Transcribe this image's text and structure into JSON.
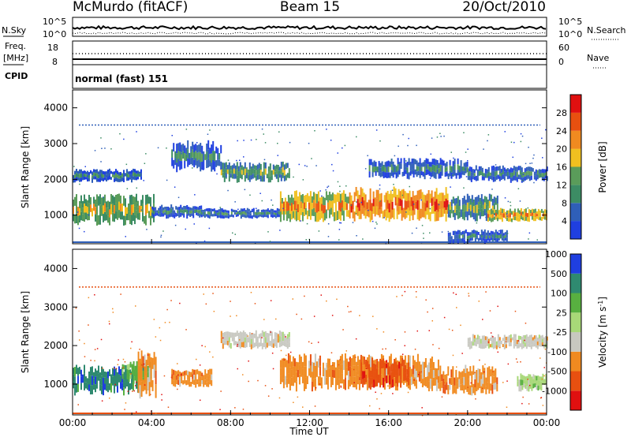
{
  "header": {
    "station": "McMurdo (fitACF)",
    "beam": "Beam 15",
    "date": "20/Oct/2010"
  },
  "top_panel": {
    "left_label": "N.Sky",
    "right_label": "N.Search",
    "left_ticks": [
      "10^5",
      "10^0"
    ],
    "right_ticks": [
      "10^5",
      "10^0"
    ]
  },
  "freq_panel": {
    "left_label_1": "Freq.",
    "left_label_2": "[MHz]",
    "left_ticks": [
      "18",
      "8"
    ],
    "right_ticks": [
      "60",
      "0"
    ],
    "right_label": "Nave",
    "cpid_label": "CPID"
  },
  "mode_label": "normal (fast) 151",
  "colors": {
    "power": [
      "#1f3fe0",
      "#2f5fb8",
      "#3c8c64",
      "#5a9c5a",
      "#f0c020",
      "#f08a20",
      "#e85010",
      "#e01010"
    ],
    "velocity": [
      "#e01010",
      "#e85010",
      "#f08a20",
      "#c8c8c0",
      "#a8d878",
      "#58b040",
      "#2f8a70",
      "#1f3fe0"
    ]
  },
  "chart_data": [
    {
      "type": "heatmap",
      "title": "Power",
      "xlabel": "Time UT",
      "ylabel": "Slant Range [km]",
      "x_tick_labels": [
        "00:00",
        "04:00",
        "08:00",
        "12:00",
        "16:00",
        "20:00",
        "00:00"
      ],
      "xlim_hours": [
        0,
        24
      ],
      "y_ticks": [
        1000,
        2000,
        3000,
        4000
      ],
      "ylim": [
        200,
        4500
      ],
      "colorbar": {
        "label": "Power [dB]",
        "ticks": [
          "4",
          "8",
          "12",
          "16",
          "20",
          "24",
          "28"
        ],
        "range": [
          0,
          32
        ]
      },
      "regions": [
        {
          "t0": 0.0,
          "t1": 4.1,
          "r0": 700,
          "r1": 1600,
          "level": 16
        },
        {
          "t0": 0.0,
          "t1": 3.5,
          "r0": 1900,
          "r1": 2300,
          "level": 8
        },
        {
          "t0": 4.0,
          "t1": 6.5,
          "r0": 900,
          "r1": 1300,
          "level": 8
        },
        {
          "t0": 5.0,
          "t1": 7.5,
          "r0": 2200,
          "r1": 3100,
          "level": 6
        },
        {
          "t0": 7.5,
          "t1": 11.0,
          "r0": 1900,
          "r1": 2500,
          "level": 10
        },
        {
          "t0": 6.5,
          "t1": 10.5,
          "r0": 900,
          "r1": 1200,
          "level": 8
        },
        {
          "t0": 10.5,
          "t1": 14.0,
          "r0": 800,
          "r1": 1700,
          "level": 20
        },
        {
          "t0": 14.0,
          "t1": 19.0,
          "r0": 800,
          "r1": 1800,
          "level": 22
        },
        {
          "t0": 19.0,
          "t1": 21.5,
          "r0": 800,
          "r1": 1600,
          "level": 12
        },
        {
          "t0": 21.0,
          "t1": 24.0,
          "r0": 800,
          "r1": 1200,
          "level": 18
        },
        {
          "t0": 20.0,
          "t1": 24.0,
          "r0": 1900,
          "r1": 2400,
          "level": 8
        },
        {
          "t0": 15.0,
          "t1": 20.0,
          "r0": 2000,
          "r1": 2600,
          "level": 6
        },
        {
          "t0": 19.0,
          "t1": 22.0,
          "r0": 200,
          "r1": 600,
          "level": 8
        }
      ]
    },
    {
      "type": "heatmap",
      "title": "Velocity",
      "xlabel": "Time UT",
      "ylabel": "Slant Range [km]",
      "x_tick_labels": [
        "00:00",
        "04:00",
        "08:00",
        "12:00",
        "16:00",
        "20:00",
        "00:00"
      ],
      "xlim_hours": [
        0,
        24
      ],
      "y_ticks": [
        1000,
        2000,
        3000,
        4000
      ],
      "ylim": [
        200,
        4500
      ],
      "colorbar": {
        "label": "Velocity [m s^-1]",
        "ticks": [
          "-1000",
          "-500",
          "-100",
          "-25",
          "25",
          "100",
          "500",
          "1000"
        ]
      },
      "regions": [
        {
          "t0": 0.0,
          "t1": 3.3,
          "r0": 700,
          "r1": 1500,
          "level": 6
        },
        {
          "t0": 2.5,
          "t1": 4.0,
          "r0": 1000,
          "r1": 1600,
          "level": 5
        },
        {
          "t0": 3.3,
          "t1": 4.2,
          "r0": 600,
          "r1": 1900,
          "level": 2
        },
        {
          "t0": 5.0,
          "t1": 7.0,
          "r0": 900,
          "r1": 1400,
          "level": 2
        },
        {
          "t0": 7.5,
          "t1": 11.0,
          "r0": 1900,
          "r1": 2400,
          "level": 3
        },
        {
          "t0": 10.5,
          "t1": 18.5,
          "r0": 800,
          "r1": 1800,
          "level": 2
        },
        {
          "t0": 14.5,
          "t1": 17.0,
          "r0": 900,
          "r1": 1700,
          "level": 1
        },
        {
          "t0": 18.5,
          "t1": 21.5,
          "r0": 700,
          "r1": 1500,
          "level": 2
        },
        {
          "t0": 20.0,
          "t1": 24.0,
          "r0": 1900,
          "r1": 2300,
          "level": 3
        },
        {
          "t0": 22.5,
          "t1": 24.0,
          "r0": 800,
          "r1": 1300,
          "level": 4
        }
      ]
    }
  ]
}
